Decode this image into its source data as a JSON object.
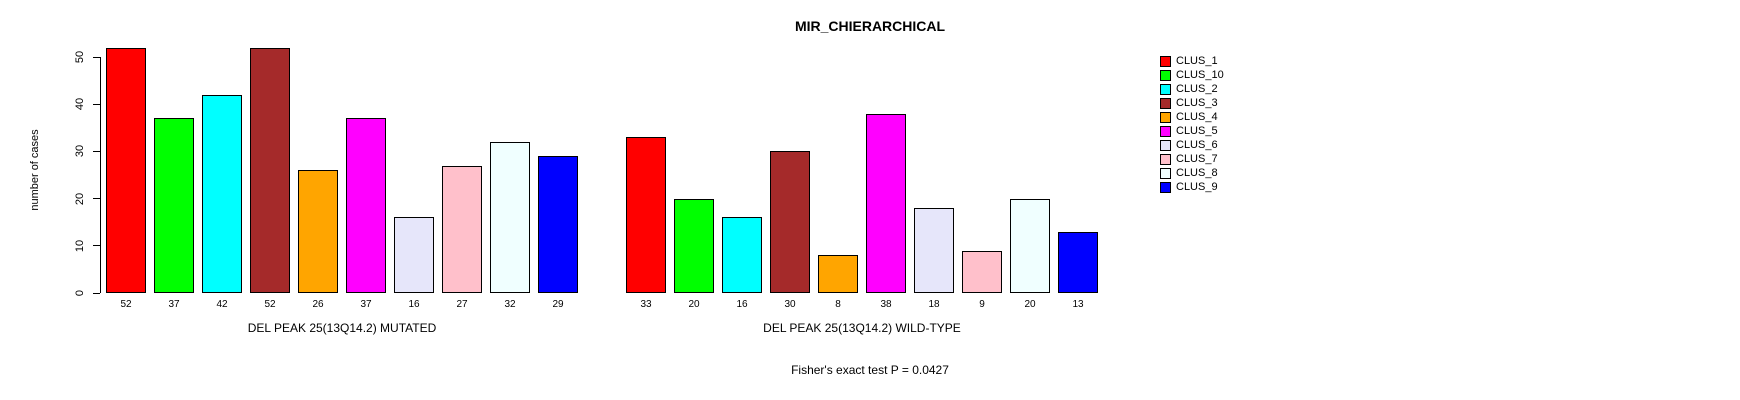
{
  "title": "MIR_CHIERARCHICAL",
  "subtitle": "Fisher's exact test P = 0.0427",
  "chart_data": {
    "type": "bar",
    "title": "MIR_CHIERARCHICAL",
    "xlabel": "",
    "ylabel": "number of cases",
    "ylim": [
      0,
      52
    ],
    "yticks": [
      0,
      10,
      20,
      30,
      40,
      50
    ],
    "grid": false,
    "legend_position": "right",
    "annotation": "Fisher's exact test P = 0.0427",
    "series_names": [
      "CLUS_1",
      "CLUS_10",
      "CLUS_2",
      "CLUS_3",
      "CLUS_4",
      "CLUS_5",
      "CLUS_6",
      "CLUS_7",
      "CLUS_8",
      "CLUS_9"
    ],
    "colors": [
      "#FF0000",
      "#00FF00",
      "#00FFFF",
      "#A52A2A",
      "#FFA500",
      "#FF00FF",
      "#E6E6FA",
      "#FFC0CB",
      "#F0FFFF",
      "#0000FF"
    ],
    "groups": [
      {
        "label": "DEL PEAK 25(13Q14.2) MUTATED",
        "values": [
          52,
          37,
          42,
          52,
          26,
          37,
          16,
          27,
          32,
          29
        ]
      },
      {
        "label": "DEL PEAK 25(13Q14.2) WILD-TYPE",
        "values": [
          33,
          20,
          16,
          30,
          8,
          38,
          18,
          9,
          20,
          13
        ]
      }
    ]
  }
}
